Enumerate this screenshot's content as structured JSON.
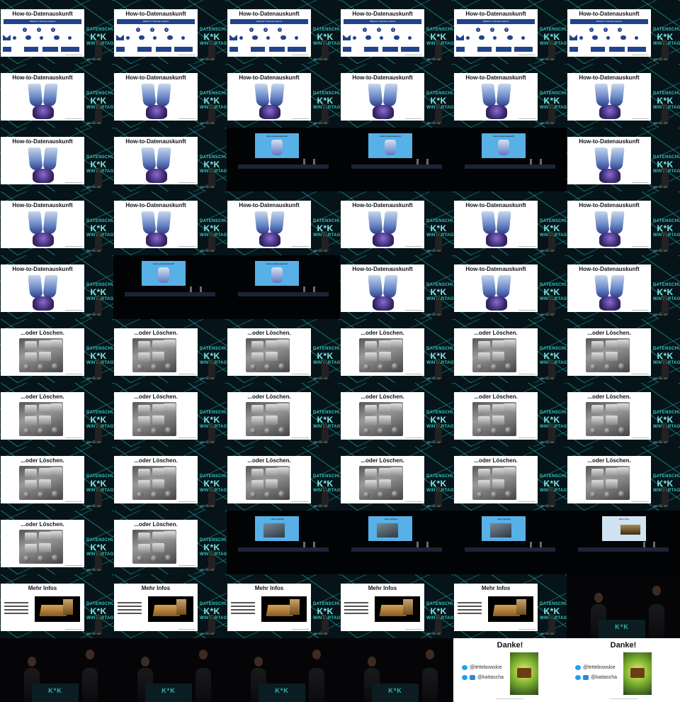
{
  "contact_sheet": {
    "columns": 6,
    "rows": 11,
    "slide_titles": {
      "howto": "How-to-Datenauskunft",
      "loeschen": "...oder Löschen.",
      "mehr": "Mehr Infos",
      "danke": "Danke!"
    },
    "stage_screen_titles": {
      "howto": "How-to-Datenauskunft",
      "loeschen": "...oder Löschen.",
      "mehr": "Mehr Infos"
    },
    "diagram_banner": "Widerruf / Honesty reasons",
    "diagram_numbers": [
      "1",
      "2",
      "3"
    ],
    "brand": {
      "line1": "DATENSCHUTZ",
      "line2": "K*K",
      "line3": "WINTERTAGE"
    },
    "podium_logo": "K*K",
    "social": {
      "twitter": "@lettebowskie",
      "mastodon": "@kattascha"
    },
    "timestamp": "00:15:22"
  },
  "tiles": [
    "diagram",
    "diagram",
    "diagram",
    "diagram",
    "diagram",
    "diagram",
    "hero",
    "hero",
    "hero",
    "hero",
    "hero",
    "hero",
    "hero",
    "hero",
    "stage-howto",
    "stage-howto",
    "stage-howto",
    "hero",
    "hero",
    "hero",
    "hero",
    "hero",
    "hero",
    "hero",
    "hero",
    "stage-howto",
    "stage-howto",
    "hero",
    "hero",
    "hero",
    "keys",
    "keys",
    "keys",
    "keys",
    "keys",
    "keys",
    "keys",
    "keys",
    "keys",
    "keys",
    "keys",
    "keys",
    "keys",
    "keys",
    "keys",
    "keys",
    "keys",
    "keys",
    "keys",
    "keys",
    "stage-loeschen",
    "stage-loeschen",
    "stage-loeschen",
    "stage-mehr",
    "mehr",
    "mehr",
    "mehr",
    "mehr",
    "mehr",
    "closeup",
    "closeup",
    "closeup",
    "closeup",
    "closeup",
    "thanks-wide",
    "thanks-wide-cont"
  ]
}
